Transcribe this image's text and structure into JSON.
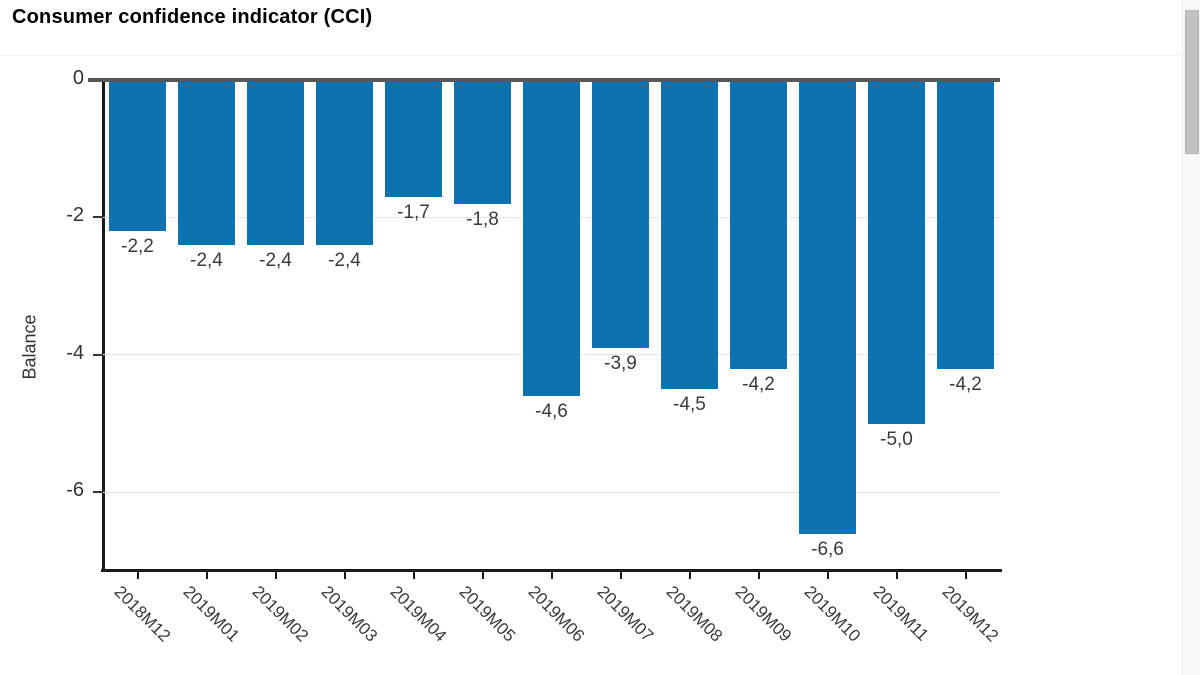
{
  "page": {
    "title": "Consumer confidence indicator (CCI)"
  },
  "chart_data": {
    "type": "bar",
    "title": "Consumer confidence indicator (CCI)",
    "xlabel": "",
    "ylabel": "Balance",
    "categories": [
      "2018M12",
      "2019M01",
      "2019M02",
      "2019M03",
      "2019M04",
      "2019M05",
      "2019M06",
      "2019M07",
      "2019M08",
      "2019M09",
      "2019M10",
      "2019M11",
      "2019M12"
    ],
    "values": [
      -2.2,
      -2.4,
      -2.4,
      -2.4,
      -1.7,
      -1.8,
      -4.6,
      -3.9,
      -4.5,
      -4.2,
      -6.6,
      -5.0,
      -4.2
    ],
    "value_labels": [
      "-2,2",
      "-2,4",
      "-2,4",
      "-2,4",
      "-1,7",
      "-1,8",
      "-4,6",
      "-3,9",
      "-4,5",
      "-4,2",
      "-6,6",
      "-5,0",
      "-4,2"
    ],
    "yticks": [
      0,
      -2,
      -4,
      -6
    ],
    "ytick_labels": [
      "0",
      "-2",
      "-4",
      "-6"
    ],
    "ylim": [
      -7.13,
      0
    ],
    "grid": "horizontal",
    "legend_position": "none",
    "decimal_separator": ",",
    "colors": {
      "bar": "#0e72b0",
      "zero_line": "#58585a",
      "gridline": "#e4e4e4",
      "axis": "#1a1a1a",
      "tick": "#333333",
      "data_label": "#3a3a3a",
      "title": "#000000"
    }
  }
}
